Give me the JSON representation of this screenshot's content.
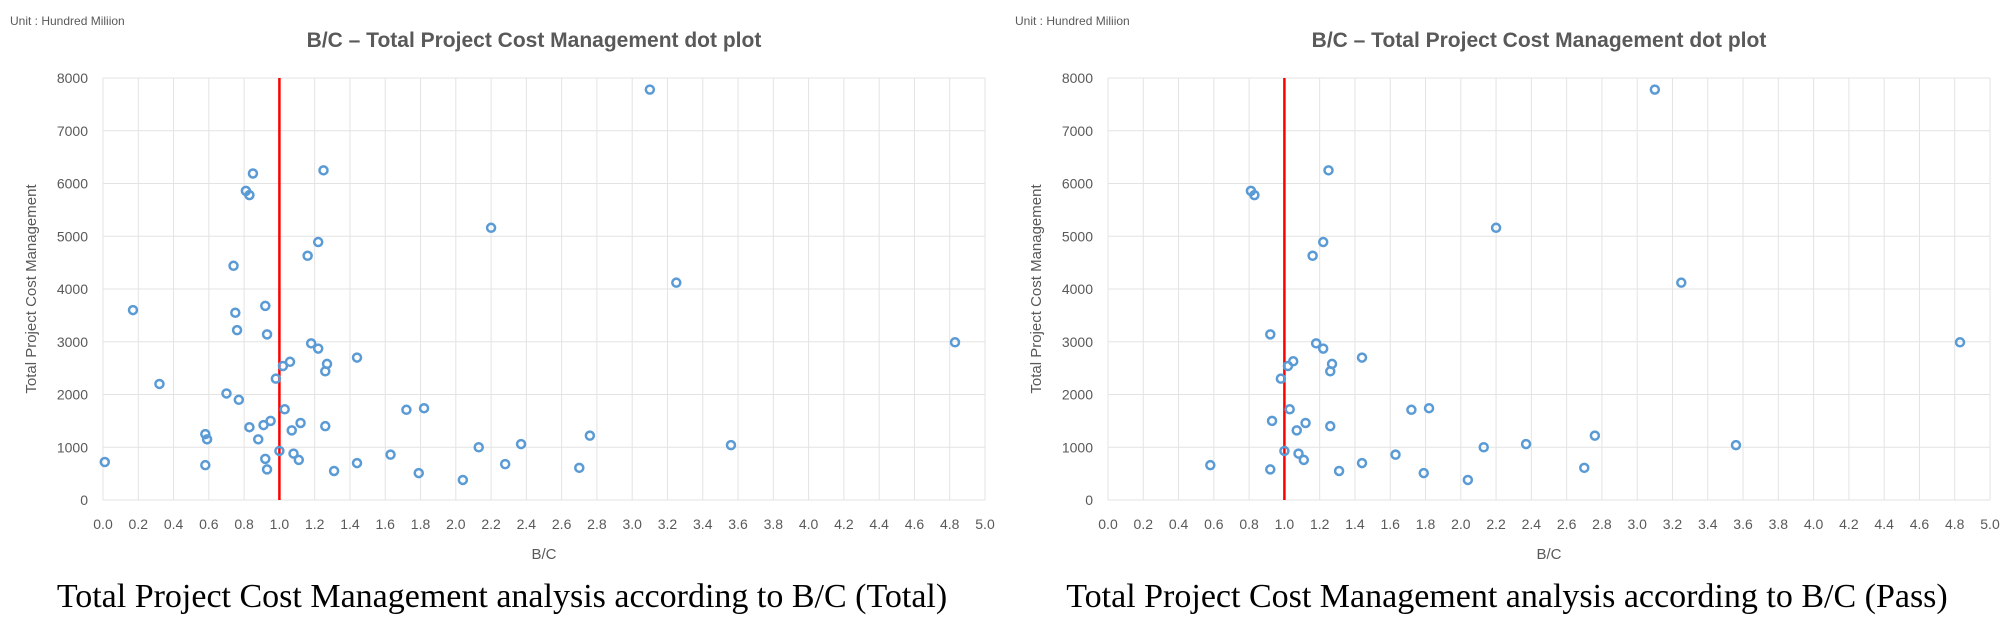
{
  "chart_data": [
    {
      "type": "scatter",
      "unit_label": "Unit : Hundred Miliion",
      "title": "B/C – Total Project Cost Management dot plot",
      "xlabel": "B/C",
      "ylabel": "Total Project Cost Management",
      "xlim": [
        0,
        5
      ],
      "ylim": [
        0,
        8000
      ],
      "xticks": [
        0.0,
        0.2,
        0.4,
        0.6,
        0.8,
        1.0,
        1.2,
        1.4,
        1.6,
        1.8,
        2.0,
        2.2,
        2.4,
        2.6,
        2.8,
        3.0,
        3.2,
        3.4,
        3.6,
        3.8,
        4.0,
        4.2,
        4.4,
        4.6,
        4.8,
        5.0
      ],
      "xtick_labels": [
        "0.0",
        "0.2",
        "0.4",
        "0.6",
        "0.8",
        "1.0",
        "1.2",
        "1.4",
        "1.6",
        "1.8",
        "2.0",
        "2.2",
        "2.4",
        "2.6",
        "2.8",
        "3.0",
        "3.2",
        "3.4",
        "3.6",
        "3.8",
        "4.0",
        "4.2",
        "4.4",
        "4.6",
        "4.8",
        "5.0"
      ],
      "yticks": [
        0,
        1000,
        2000,
        3000,
        4000,
        5000,
        6000,
        7000,
        8000
      ],
      "ytick_labels": [
        "0",
        "1000",
        "2000",
        "3000",
        "4000",
        "5000",
        "6000",
        "7000",
        "8000"
      ],
      "grid": true,
      "reference_line": {
        "x": 1.0,
        "color": "#ff0000"
      },
      "marker_color": "#5b9bd5",
      "caption": "Total Project Cost Management analysis according to B/C (Total)",
      "points": [
        {
          "x": 0.01,
          "y": 720
        },
        {
          "x": 0.17,
          "y": 3600
        },
        {
          "x": 0.32,
          "y": 2200
        },
        {
          "x": 0.58,
          "y": 1250
        },
        {
          "x": 0.59,
          "y": 1150
        },
        {
          "x": 0.58,
          "y": 660
        },
        {
          "x": 0.7,
          "y": 2020
        },
        {
          "x": 0.74,
          "y": 4440
        },
        {
          "x": 0.75,
          "y": 3550
        },
        {
          "x": 0.76,
          "y": 3220
        },
        {
          "x": 0.77,
          "y": 1900
        },
        {
          "x": 0.81,
          "y": 5860
        },
        {
          "x": 0.83,
          "y": 5780
        },
        {
          "x": 0.85,
          "y": 6190
        },
        {
          "x": 0.83,
          "y": 1380
        },
        {
          "x": 0.88,
          "y": 1150
        },
        {
          "x": 0.91,
          "y": 1420
        },
        {
          "x": 0.92,
          "y": 3680
        },
        {
          "x": 0.93,
          "y": 3140
        },
        {
          "x": 0.92,
          "y": 780
        },
        {
          "x": 0.93,
          "y": 580
        },
        {
          "x": 0.95,
          "y": 1500
        },
        {
          "x": 0.98,
          "y": 2300
        },
        {
          "x": 1.0,
          "y": 930
        },
        {
          "x": 1.02,
          "y": 2540
        },
        {
          "x": 1.03,
          "y": 1720
        },
        {
          "x": 1.06,
          "y": 2620
        },
        {
          "x": 1.07,
          "y": 1320
        },
        {
          "x": 1.08,
          "y": 880
        },
        {
          "x": 1.11,
          "y": 760
        },
        {
          "x": 1.12,
          "y": 1460
        },
        {
          "x": 1.16,
          "y": 4630
        },
        {
          "x": 1.18,
          "y": 2970
        },
        {
          "x": 1.22,
          "y": 2870
        },
        {
          "x": 1.22,
          "y": 4890
        },
        {
          "x": 1.25,
          "y": 6250
        },
        {
          "x": 1.26,
          "y": 2440
        },
        {
          "x": 1.27,
          "y": 2580
        },
        {
          "x": 1.26,
          "y": 1400
        },
        {
          "x": 1.31,
          "y": 550
        },
        {
          "x": 1.44,
          "y": 2700
        },
        {
          "x": 1.44,
          "y": 700
        },
        {
          "x": 1.63,
          "y": 860
        },
        {
          "x": 1.72,
          "y": 1710
        },
        {
          "x": 1.79,
          "y": 510
        },
        {
          "x": 1.82,
          "y": 1740
        },
        {
          "x": 2.04,
          "y": 380
        },
        {
          "x": 2.13,
          "y": 1000
        },
        {
          "x": 2.2,
          "y": 5160
        },
        {
          "x": 2.28,
          "y": 680
        },
        {
          "x": 2.37,
          "y": 1060
        },
        {
          "x": 2.7,
          "y": 610
        },
        {
          "x": 2.76,
          "y": 1220
        },
        {
          "x": 3.1,
          "y": 7780
        },
        {
          "x": 3.25,
          "y": 4120
        },
        {
          "x": 3.56,
          "y": 1040
        },
        {
          "x": 4.83,
          "y": 2990
        }
      ]
    },
    {
      "type": "scatter",
      "unit_label": "Unit : Hundred Miliion",
      "title": "B/C – Total Project Cost Management dot plot",
      "xlabel": "B/C",
      "ylabel": "Total Project Cost Management",
      "xlim": [
        0,
        5
      ],
      "ylim": [
        0,
        8000
      ],
      "xticks": [
        0.0,
        0.2,
        0.4,
        0.6,
        0.8,
        1.0,
        1.2,
        1.4,
        1.6,
        1.8,
        2.0,
        2.2,
        2.4,
        2.6,
        2.8,
        3.0,
        3.2,
        3.4,
        3.6,
        3.8,
        4.0,
        4.2,
        4.4,
        4.6,
        4.8,
        5.0
      ],
      "xtick_labels": [
        "0.0",
        "0.2",
        "0.4",
        "0.6",
        "0.8",
        "1.0",
        "1.2",
        "1.4",
        "1.6",
        "1.8",
        "2.0",
        "2.2",
        "2.4",
        "2.6",
        "2.8",
        "3.0",
        "3.2",
        "3.4",
        "3.6",
        "3.8",
        "4.0",
        "4.2",
        "4.4",
        "4.6",
        "4.8",
        "5.0"
      ],
      "yticks": [
        0,
        1000,
        2000,
        3000,
        4000,
        5000,
        6000,
        7000,
        8000
      ],
      "ytick_labels": [
        "0",
        "1000",
        "2000",
        "3000",
        "4000",
        "5000",
        "6000",
        "7000",
        "8000"
      ],
      "grid": true,
      "reference_line": {
        "x": 1.0,
        "color": "#ff0000"
      },
      "marker_color": "#5b9bd5",
      "caption": "Total Project Cost Management analysis according to B/C (Pass)",
      "points": [
        {
          "x": 0.58,
          "y": 660
        },
        {
          "x": 0.81,
          "y": 5860
        },
        {
          "x": 0.83,
          "y": 5780
        },
        {
          "x": 0.92,
          "y": 3140
        },
        {
          "x": 0.93,
          "y": 1500
        },
        {
          "x": 0.92,
          "y": 580
        },
        {
          "x": 0.98,
          "y": 2300
        },
        {
          "x": 1.0,
          "y": 930
        },
        {
          "x": 1.02,
          "y": 2540
        },
        {
          "x": 1.03,
          "y": 1720
        },
        {
          "x": 1.05,
          "y": 2630
        },
        {
          "x": 1.07,
          "y": 1320
        },
        {
          "x": 1.08,
          "y": 880
        },
        {
          "x": 1.11,
          "y": 760
        },
        {
          "x": 1.12,
          "y": 1460
        },
        {
          "x": 1.16,
          "y": 4630
        },
        {
          "x": 1.18,
          "y": 2970
        },
        {
          "x": 1.22,
          "y": 2870
        },
        {
          "x": 1.22,
          "y": 4890
        },
        {
          "x": 1.25,
          "y": 6250
        },
        {
          "x": 1.26,
          "y": 2440
        },
        {
          "x": 1.27,
          "y": 2580
        },
        {
          "x": 1.26,
          "y": 1400
        },
        {
          "x": 1.31,
          "y": 550
        },
        {
          "x": 1.44,
          "y": 2700
        },
        {
          "x": 1.44,
          "y": 700
        },
        {
          "x": 1.63,
          "y": 860
        },
        {
          "x": 1.72,
          "y": 1710
        },
        {
          "x": 1.79,
          "y": 510
        },
        {
          "x": 1.82,
          "y": 1740
        },
        {
          "x": 2.04,
          "y": 380
        },
        {
          "x": 2.13,
          "y": 1000
        },
        {
          "x": 2.2,
          "y": 5160
        },
        {
          "x": 2.37,
          "y": 1060
        },
        {
          "x": 2.7,
          "y": 610
        },
        {
          "x": 2.76,
          "y": 1220
        },
        {
          "x": 3.1,
          "y": 7780
        },
        {
          "x": 3.25,
          "y": 4120
        },
        {
          "x": 3.56,
          "y": 1040
        },
        {
          "x": 4.83,
          "y": 2990
        }
      ]
    }
  ]
}
